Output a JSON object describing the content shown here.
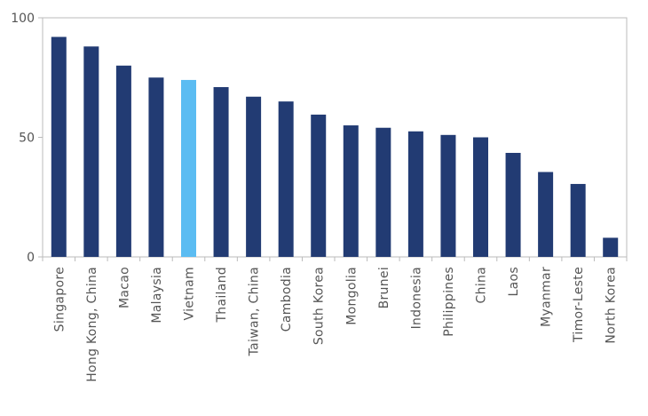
{
  "chart_data": {
    "type": "bar",
    "title": "",
    "xlabel": "",
    "ylabel": "",
    "ylim": [
      0,
      100
    ],
    "yticks": [
      0,
      50,
      100
    ],
    "grid": false,
    "categories": [
      "Singapore",
      "Hong Kong, China",
      "Macao",
      "Malaysia",
      "Vietnam",
      "Thailand",
      "Taiwan, China",
      "Cambodia",
      "South Korea",
      "Mongolia",
      "Brunei",
      "Indonesia",
      "Philippines",
      "China",
      "Laos",
      "Myanmar",
      "Timor-Leste",
      "North Korea"
    ],
    "values": [
      92,
      88,
      80,
      75,
      74,
      71,
      67,
      65,
      59.5,
      55,
      54,
      52.5,
      51,
      50,
      43.5,
      35.5,
      30.5,
      8
    ],
    "colors": {
      "bar": "#223b73",
      "highlight": "#5bbcf2",
      "axis": "#bbbbbb"
    },
    "highlight_category": "Vietnam"
  }
}
